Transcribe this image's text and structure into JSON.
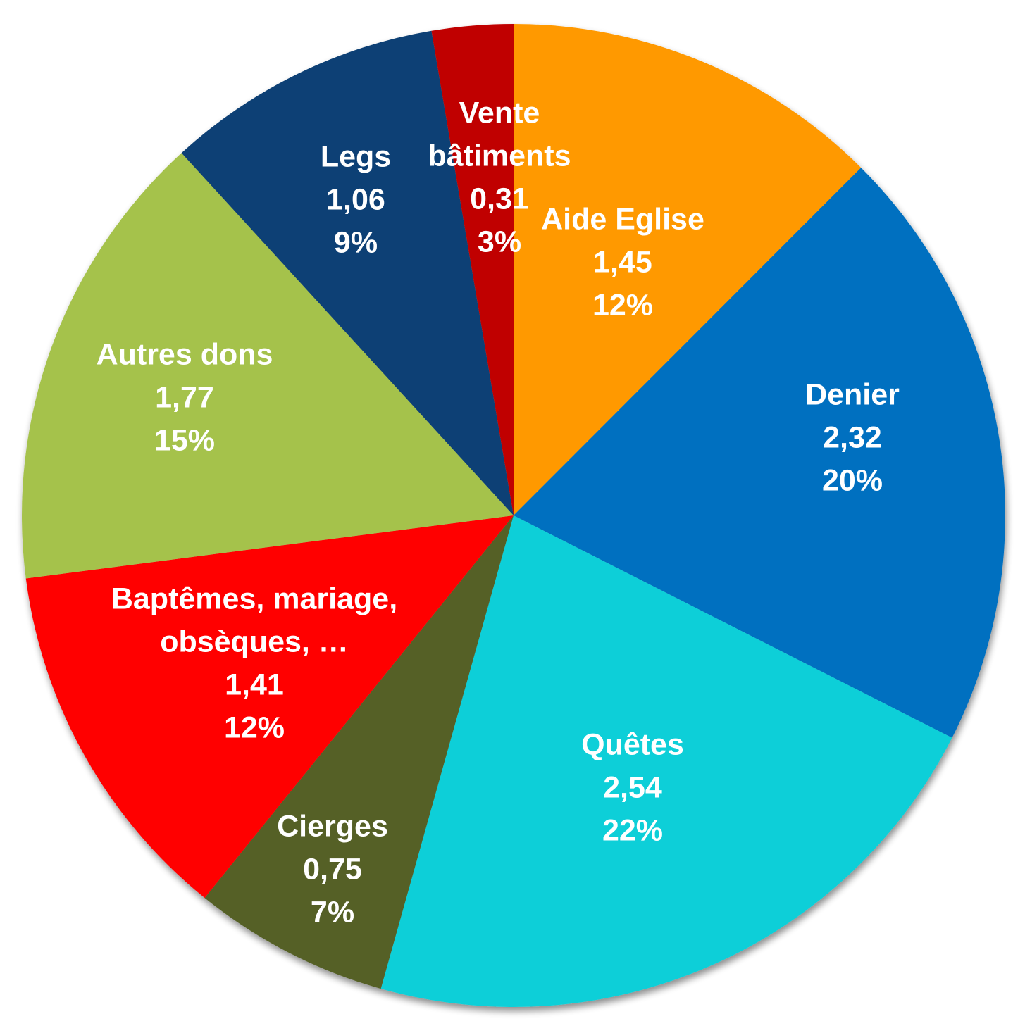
{
  "chart_data": {
    "type": "pie",
    "title": "",
    "start_angle_deg": 0,
    "direction": "clockwise",
    "slices": [
      {
        "label": [
          "Aide Eglise"
        ],
        "value": 1.45,
        "value_label": "1,45",
        "percent_label": "12%",
        "color": "#FF9900"
      },
      {
        "label": [
          "Denier"
        ],
        "value": 2.32,
        "value_label": "2,32",
        "percent_label": "20%",
        "color": "#0070C0"
      },
      {
        "label": [
          "Quêtes"
        ],
        "value": 2.54,
        "value_label": "2,54",
        "percent_label": "22%",
        "color": "#0DCFD8"
      },
      {
        "label": [
          "Cierges"
        ],
        "value": 0.75,
        "value_label": "0,75",
        "percent_label": "7%",
        "color": "#556126"
      },
      {
        "label": [
          "Baptêmes, mariage,",
          "obsèques, …"
        ],
        "value": 1.41,
        "value_label": "1,41",
        "percent_label": "12%",
        "color": "#FF0000"
      },
      {
        "label": [
          "Autres dons"
        ],
        "value": 1.77,
        "value_label": "1,77",
        "percent_label": "15%",
        "color": "#A5C24C"
      },
      {
        "label": [
          "Legs"
        ],
        "value": 1.06,
        "value_label": "1,06",
        "percent_label": "9%",
        "color": "#0E4175"
      },
      {
        "label": [
          "Vente",
          "bâtiments"
        ],
        "value": 0.31,
        "value_label": "0,31",
        "percent_label": "3%",
        "color": "#C00000"
      }
    ]
  }
}
